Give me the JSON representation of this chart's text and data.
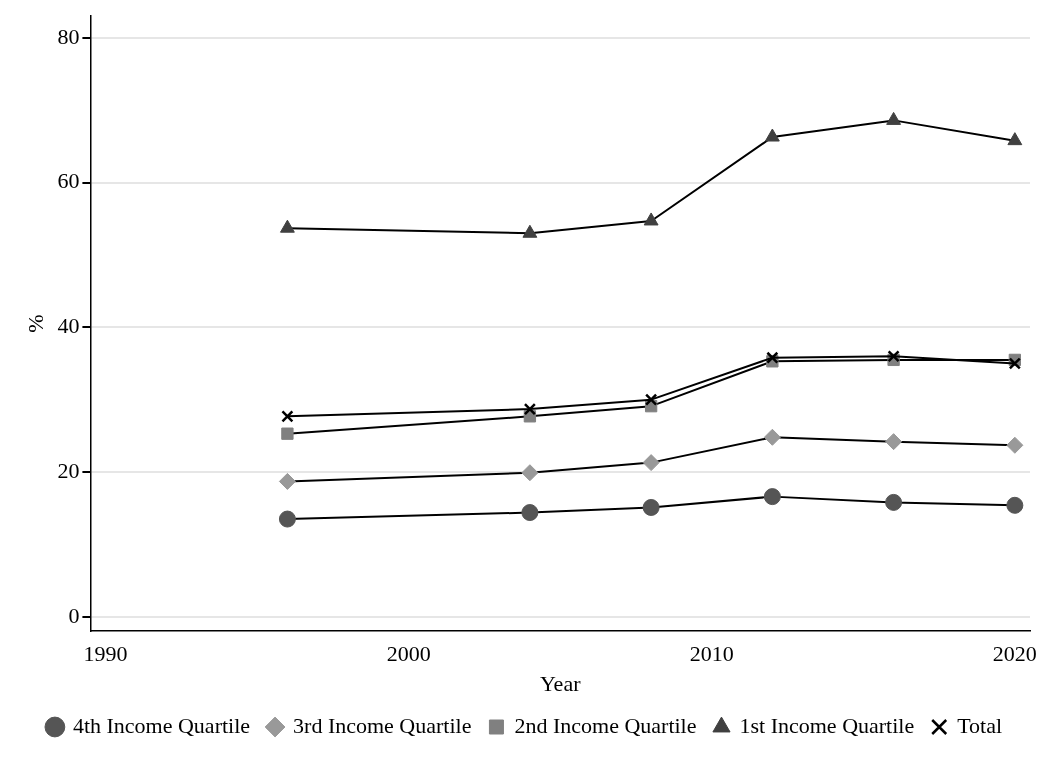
{
  "chart_data": {
    "type": "line",
    "xlabel": "Year",
    "ylabel": "%",
    "x": [
      1996,
      2004,
      2008,
      2012,
      2016,
      2020
    ],
    "xlim": [
      1989.5,
      2020.5
    ],
    "xticks": [
      1990,
      2000,
      2010,
      2020
    ],
    "ylim": [
      -2,
      83
    ],
    "yticks": [
      0,
      20,
      40,
      60,
      80
    ],
    "grid": "y",
    "legend": "bottom",
    "series": [
      {
        "name": "4th Income Quartile",
        "color": "#555555",
        "marker": "circle",
        "values": [
          13.5,
          14.4,
          15.1,
          16.6,
          15.8,
          15.4
        ]
      },
      {
        "name": "3rd Income Quartile",
        "color": "#999999",
        "marker": "diamond",
        "values": [
          18.7,
          19.9,
          21.3,
          24.8,
          24.2,
          23.7
        ]
      },
      {
        "name": "2nd Income Quartile",
        "color": "#808080",
        "marker": "square",
        "values": [
          25.3,
          27.7,
          29.1,
          35.3,
          35.5,
          35.5
        ]
      },
      {
        "name": "1st Income Quartile",
        "color": "#404040",
        "marker": "triangle",
        "values": [
          53.7,
          53.0,
          54.7,
          66.3,
          68.6,
          65.8
        ]
      },
      {
        "name": "Total",
        "color": "#000000",
        "marker": "cross",
        "values": [
          27.7,
          28.7,
          30.0,
          35.8,
          36.0,
          35.0
        ]
      }
    ]
  }
}
